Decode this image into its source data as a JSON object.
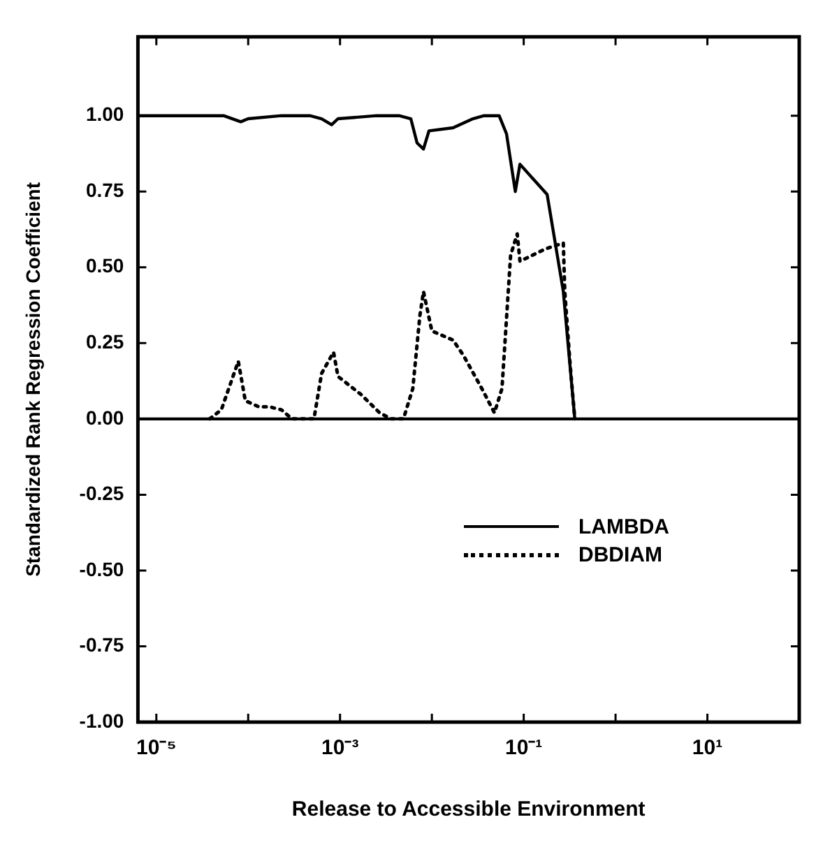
{
  "chart_data": {
    "type": "line",
    "xlabel": "Release to Accessible Environment",
    "ylabel": "Standardized Rank Regression Coefficient",
    "log": "x",
    "xlim": [
      6.3e-06,
      100
    ],
    "ylim": [
      -1,
      1.26
    ],
    "xticks": [
      {
        "value": 1e-05,
        "label": "10⁻⁵"
      },
      {
        "value": 0.0001,
        "label": null
      },
      {
        "value": 0.001,
        "label": "10⁻³"
      },
      {
        "value": 0.01,
        "label": null
      },
      {
        "value": 0.1,
        "label": "10⁻¹"
      },
      {
        "value": 1,
        "label": null
      },
      {
        "value": 10,
        "label": "10¹"
      }
    ],
    "yticks": [
      {
        "value": -1,
        "label": "-1.00"
      },
      {
        "value": -0.75,
        "label": "-0.75"
      },
      {
        "value": -0.5,
        "label": "-0.50"
      },
      {
        "value": -0.25,
        "label": "-0.25"
      },
      {
        "value": 0,
        "label": "0.00"
      },
      {
        "value": 0.25,
        "label": "0.25"
      },
      {
        "value": 0.5,
        "label": "0.50"
      },
      {
        "value": 0.75,
        "label": "0.75"
      },
      {
        "value": 1,
        "label": "1.00"
      }
    ],
    "grid": false,
    "legend": "bottom right",
    "marker": "none",
    "ref_lines": [
      {
        "axis": "y",
        "value": 0,
        "color": "#000000",
        "line_style": "solid"
      }
    ],
    "series": [
      {
        "name": "LAMBDA",
        "color": "#000000",
        "line_style": "solid",
        "x": [
          6.3e-06,
          5.4e-05,
          8.3e-05,
          0.0001,
          0.00023,
          0.00047,
          0.00063,
          0.00081,
          0.00095,
          0.0025,
          0.0044,
          0.0059,
          0.0069,
          0.0081,
          0.0093,
          0.017,
          0.028,
          0.037,
          0.054,
          0.065,
          0.081,
          0.091,
          0.18,
          0.27,
          0.36
        ],
        "values": [
          1.0,
          1.0,
          0.98,
          0.99,
          1.0,
          1.0,
          0.99,
          0.97,
          0.99,
          1.0,
          1.0,
          0.99,
          0.91,
          0.89,
          0.95,
          0.96,
          0.99,
          1.0,
          1.0,
          0.94,
          0.75,
          0.84,
          0.74,
          0.42,
          0
        ]
      },
      {
        "name": "DBDIAM",
        "color": "#000000",
        "line_style": "dotted",
        "x": [
          3.8e-05,
          5.1e-05,
          7.8e-05,
          9.3e-05,
          0.00013,
          0.00017,
          0.00023,
          0.0003,
          0.00052,
          0.00063,
          0.00085,
          0.00095,
          0.0017,
          0.0027,
          0.0036,
          0.0049,
          0.0062,
          0.0074,
          0.0081,
          0.01,
          0.017,
          0.022,
          0.035,
          0.048,
          0.058,
          0.072,
          0.085,
          0.091,
          0.17,
          0.27,
          0.28,
          0.32,
          0.36
        ],
        "values": [
          0,
          0.03,
          0.19,
          0.06,
          0.04,
          0.04,
          0.03,
          0,
          0,
          0.15,
          0.22,
          0.14,
          0.08,
          0.02,
          0,
          0,
          0.1,
          0.34,
          0.42,
          0.29,
          0.26,
          0.21,
          0.1,
          0.02,
          0.1,
          0.54,
          0.61,
          0.52,
          0.56,
          0.58,
          0.42,
          0.18,
          0
        ]
      }
    ]
  }
}
